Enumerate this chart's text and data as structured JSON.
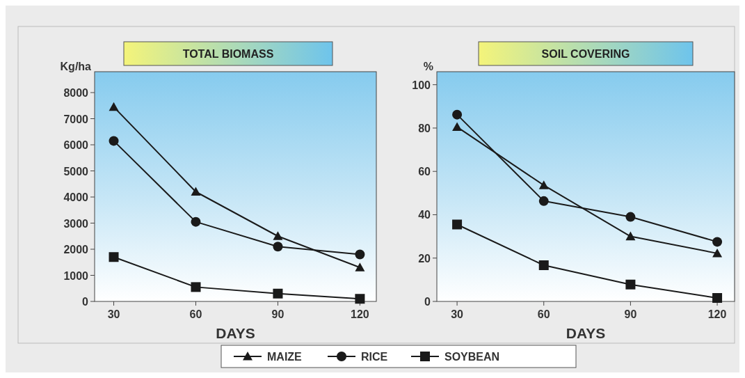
{
  "chart_data": [
    {
      "type": "line",
      "title": "TOTAL BIOMASS",
      "xlabel": "DAYS",
      "ylabel": "Kg/ha",
      "x": [
        30,
        60,
        90,
        120
      ],
      "xlim": [
        23,
        126
      ],
      "xticks": [
        30,
        60,
        90,
        120
      ],
      "ylim": [
        0,
        8800
      ],
      "yticks": [
        0,
        1000,
        2000,
        3000,
        4000,
        5000,
        6000,
        7000,
        8000
      ],
      "grid": false,
      "legend": "bottom",
      "line_style": "solid",
      "series": [
        {
          "name": "MAIZE",
          "color": "#1a1a1a",
          "marker": "triangle",
          "values": [
            7450,
            4200,
            2500,
            1300
          ]
        },
        {
          "name": "RICE",
          "color": "#1a1a1a",
          "marker": "circle",
          "values": [
            6150,
            3050,
            2100,
            1800
          ]
        },
        {
          "name": "SOYBEAN",
          "color": "#1a1a1a",
          "marker": "square",
          "values": [
            1700,
            550,
            300,
            100
          ]
        }
      ]
    },
    {
      "type": "line",
      "title": "SOIL COVERING",
      "xlabel": "DAYS",
      "ylabel": "%",
      "x": [
        30,
        60,
        90,
        120
      ],
      "xlim": [
        23,
        126
      ],
      "xticks": [
        30,
        60,
        90,
        120
      ],
      "ylim": [
        0,
        106
      ],
      "yticks": [
        0,
        20,
        40,
        60,
        80,
        100
      ],
      "grid": false,
      "line_style": "solid",
      "series": [
        {
          "color": "#1a1a1a",
          "marker": "triangle",
          "values": [
            80.5,
            53.6,
            30,
            22.2
          ]
        },
        {
          "color": "#1a1a1a",
          "marker": "circle",
          "values": [
            86.2,
            46.3,
            39,
            27.5
          ]
        },
        {
          "color": "#1a1a1a",
          "marker": "square",
          "values": [
            35.5,
            16.7,
            7.8,
            1.6
          ]
        }
      ]
    }
  ]
}
